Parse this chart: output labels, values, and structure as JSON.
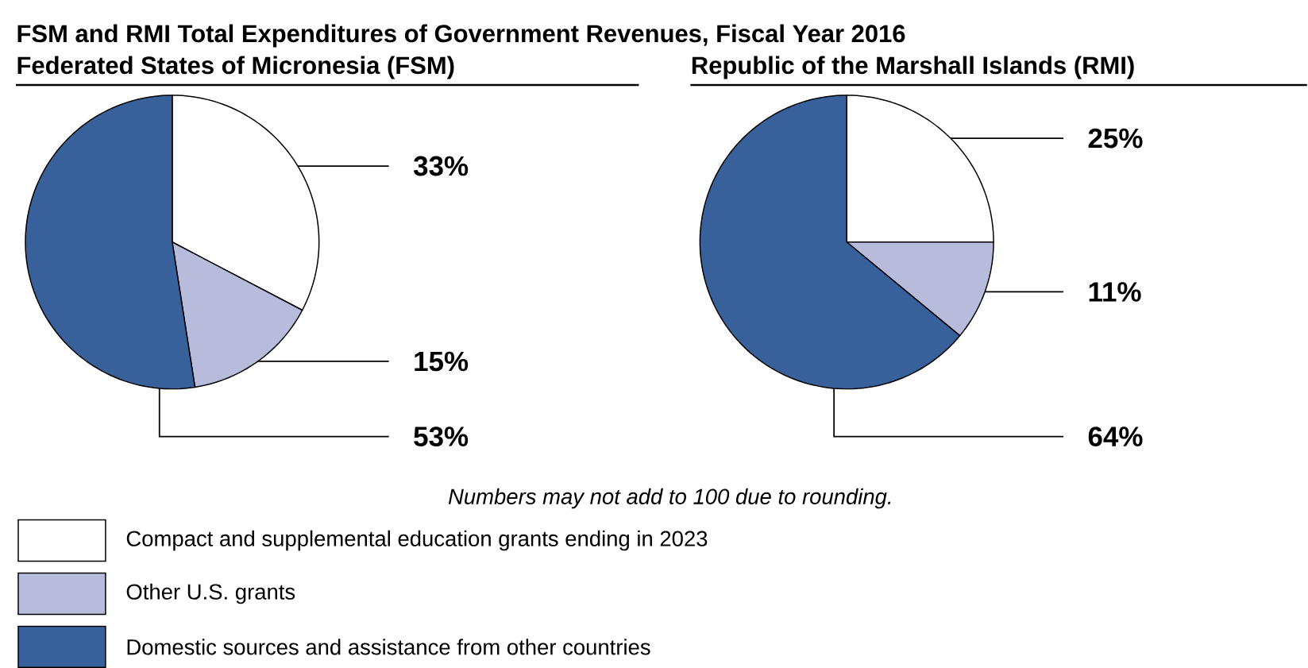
{
  "chart_data": [
    {
      "type": "pie",
      "title": "FSM and RMI Total Expenditures of Government Revenues, Fiscal Year 2016",
      "subtitle": "Federated States of Micronesia (FSM)",
      "categories": [
        "Compact and supplemental education grants ending in 2023",
        "Other U.S. grants",
        "Domestic sources and assistance from other countries"
      ],
      "values": [
        33,
        15,
        53
      ],
      "colors": [
        "#ffffff",
        "#b8bcdc",
        "#38609a"
      ],
      "value_labels": [
        "33%",
        "15%",
        "53%"
      ],
      "legend": "bottom",
      "annotations": [
        "Numbers may not add to 100 due to rounding."
      ]
    },
    {
      "type": "pie",
      "title": "Republic of the Marshall Islands (RMI)",
      "categories": [
        null,
        null,
        null
      ],
      "values": [
        25,
        11,
        64
      ],
      "colors": [
        "#ffffff",
        "#b8bcdc",
        "#38609a"
      ],
      "value_labels": [
        "25%",
        "11%",
        "64%"
      ]
    }
  ]
}
